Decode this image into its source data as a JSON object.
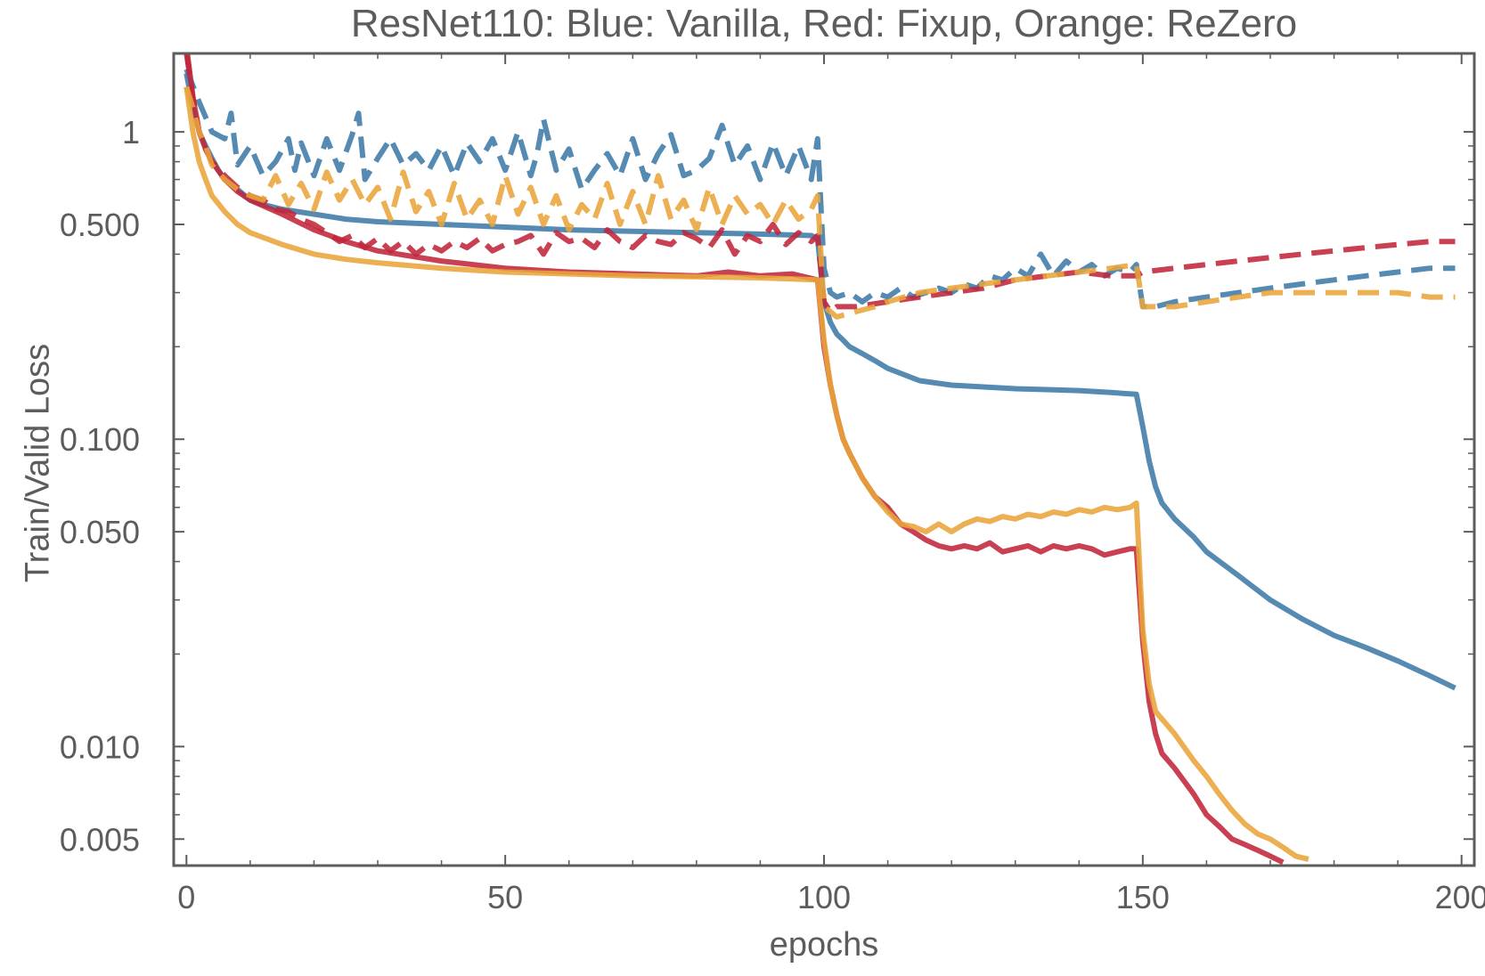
{
  "chart_data": {
    "type": "line",
    "title": "ResNet110:  Blue: Vanilla, Red: Fixup, Orange: ReZero",
    "xlabel": "epochs",
    "ylabel": "Train/Valid Loss",
    "xlim": [
      -2,
      202
    ],
    "ylim": [
      0.0041,
      1.8
    ],
    "y_scale": "log",
    "grid": false,
    "legend": "none",
    "x_ticks": [
      0,
      50,
      100,
      150,
      200
    ],
    "x_tick_labels": [
      "0",
      "50",
      "100",
      "150",
      "200"
    ],
    "y_ticks": [
      0.005,
      0.01,
      0.05,
      0.1,
      0.5,
      1
    ],
    "y_tick_labels": [
      "0.005",
      "0.010",
      "0.050",
      "0.100",
      "0.500",
      "1"
    ],
    "colors": {
      "blue": "#3d7aa8",
      "red": "#c0263a",
      "orange": "#e9a43a"
    },
    "series": [
      {
        "color": "#3d7aa8",
        "style": "dashed",
        "x": [
          0,
          2,
          4,
          6,
          7,
          8,
          10,
          12,
          14,
          16,
          17,
          18,
          20,
          22,
          24,
          26,
          27,
          28,
          30,
          32,
          34,
          36,
          38,
          40,
          42,
          44,
          46,
          48,
          50,
          52,
          54,
          55,
          56,
          58,
          60,
          62,
          64,
          66,
          68,
          70,
          72,
          74,
          76,
          78,
          80,
          82,
          84,
          86,
          88,
          90,
          92,
          94,
          96,
          98,
          99,
          100,
          101,
          102,
          104,
          106,
          108,
          110,
          112,
          114,
          116,
          118,
          120,
          122,
          124,
          126,
          128,
          130,
          132,
          134,
          136,
          138,
          140,
          142,
          144,
          146,
          148,
          149,
          150,
          151,
          152,
          155,
          160,
          165,
          170,
          175,
          180,
          185,
          190,
          195,
          199
        ],
        "y": [
          1.6,
          1.25,
          1.0,
          0.95,
          1.15,
          0.78,
          0.9,
          0.72,
          0.8,
          0.95,
          0.75,
          0.92,
          0.72,
          0.95,
          0.75,
          0.98,
          1.15,
          0.7,
          0.82,
          0.95,
          0.78,
          0.85,
          0.75,
          0.9,
          0.72,
          0.92,
          0.8,
          0.95,
          0.75,
          1.0,
          0.72,
          0.85,
          1.1,
          0.75,
          0.88,
          0.65,
          0.75,
          0.85,
          0.72,
          0.95,
          0.7,
          0.85,
          0.98,
          0.72,
          0.75,
          0.82,
          1.05,
          0.78,
          0.9,
          0.7,
          0.92,
          0.72,
          0.9,
          0.7,
          0.95,
          0.36,
          0.3,
          0.29,
          0.3,
          0.28,
          0.3,
          0.29,
          0.31,
          0.29,
          0.3,
          0.31,
          0.3,
          0.32,
          0.31,
          0.34,
          0.33,
          0.36,
          0.34,
          0.4,
          0.34,
          0.38,
          0.35,
          0.37,
          0.34,
          0.36,
          0.35,
          0.37,
          0.27,
          0.27,
          0.27,
          0.28,
          0.29,
          0.3,
          0.31,
          0.32,
          0.33,
          0.34,
          0.35,
          0.36,
          0.36
        ]
      },
      {
        "color": "#3d7aa8",
        "style": "solid",
        "x": [
          0,
          1,
          2,
          3,
          4,
          5,
          6,
          8,
          10,
          12,
          15,
          20,
          25,
          30,
          40,
          50,
          60,
          70,
          80,
          90,
          98,
          99,
          100,
          101,
          102,
          103,
          104,
          106,
          108,
          110,
          115,
          120,
          125,
          130,
          135,
          140,
          145,
          149,
          150,
          151,
          152,
          153,
          155,
          158,
          160,
          165,
          170,
          175,
          180,
          185,
          190,
          195,
          199
        ],
        "y": [
          1.55,
          1.2,
          1.0,
          0.9,
          0.82,
          0.75,
          0.7,
          0.65,
          0.6,
          0.58,
          0.56,
          0.54,
          0.52,
          0.51,
          0.5,
          0.49,
          0.48,
          0.475,
          0.47,
          0.465,
          0.46,
          0.45,
          0.28,
          0.24,
          0.22,
          0.21,
          0.2,
          0.19,
          0.18,
          0.17,
          0.155,
          0.15,
          0.148,
          0.146,
          0.145,
          0.144,
          0.142,
          0.14,
          0.11,
          0.085,
          0.07,
          0.062,
          0.055,
          0.048,
          0.043,
          0.036,
          0.03,
          0.026,
          0.023,
          0.021,
          0.019,
          0.017,
          0.0155
        ]
      },
      {
        "color": "#c0263a",
        "style": "dashed",
        "x": [
          0,
          1,
          2,
          3,
          4,
          6,
          8,
          10,
          12,
          14,
          16,
          18,
          20,
          22,
          24,
          26,
          28,
          30,
          32,
          34,
          36,
          38,
          40,
          42,
          44,
          46,
          48,
          50,
          52,
          54,
          56,
          58,
          60,
          62,
          64,
          66,
          68,
          70,
          72,
          74,
          76,
          78,
          80,
          82,
          84,
          86,
          88,
          90,
          92,
          94,
          96,
          98,
          99,
          100,
          101,
          102,
          105,
          110,
          115,
          120,
          125,
          130,
          135,
          140,
          145,
          149,
          150,
          155,
          160,
          165,
          170,
          175,
          180,
          185,
          190,
          195,
          199
        ],
        "y": [
          1.8,
          1.3,
          1.0,
          0.88,
          0.8,
          0.72,
          0.66,
          0.62,
          0.6,
          0.56,
          0.55,
          0.52,
          0.5,
          0.47,
          0.44,
          0.46,
          0.42,
          0.45,
          0.41,
          0.44,
          0.4,
          0.43,
          0.41,
          0.44,
          0.42,
          0.45,
          0.41,
          0.43,
          0.44,
          0.46,
          0.4,
          0.47,
          0.44,
          0.45,
          0.42,
          0.48,
          0.44,
          0.42,
          0.46,
          0.44,
          0.43,
          0.47,
          0.45,
          0.42,
          0.48,
          0.4,
          0.46,
          0.44,
          0.5,
          0.43,
          0.47,
          0.44,
          0.46,
          0.28,
          0.26,
          0.27,
          0.27,
          0.28,
          0.29,
          0.3,
          0.31,
          0.33,
          0.34,
          0.35,
          0.34,
          0.34,
          0.35,
          0.36,
          0.37,
          0.38,
          0.39,
          0.4,
          0.41,
          0.42,
          0.43,
          0.44,
          0.44
        ]
      },
      {
        "color": "#c0263a",
        "style": "solid",
        "x": [
          0,
          1,
          2,
          3,
          4,
          6,
          8,
          10,
          15,
          20,
          25,
          30,
          40,
          50,
          60,
          70,
          80,
          85,
          90,
          95,
          99,
          100,
          101,
          102,
          103,
          104,
          106,
          108,
          110,
          112,
          114,
          116,
          118,
          120,
          122,
          124,
          126,
          128,
          130,
          132,
          134,
          136,
          138,
          140,
          142,
          144,
          146,
          148,
          149,
          150,
          151,
          152,
          153,
          155,
          158,
          160,
          162,
          164,
          166,
          168,
          170,
          172
        ],
        "y": [
          1.9,
          1.3,
          1.0,
          0.88,
          0.8,
          0.7,
          0.64,
          0.6,
          0.54,
          0.48,
          0.44,
          0.41,
          0.38,
          0.36,
          0.35,
          0.345,
          0.34,
          0.35,
          0.34,
          0.345,
          0.33,
          0.2,
          0.15,
          0.12,
          0.1,
          0.09,
          0.075,
          0.065,
          0.06,
          0.053,
          0.05,
          0.047,
          0.045,
          0.044,
          0.045,
          0.044,
          0.046,
          0.043,
          0.044,
          0.045,
          0.043,
          0.045,
          0.044,
          0.045,
          0.044,
          0.042,
          0.043,
          0.044,
          0.044,
          0.022,
          0.014,
          0.011,
          0.0095,
          0.0085,
          0.007,
          0.006,
          0.0055,
          0.005,
          0.0048,
          0.0046,
          0.0044,
          0.0042
        ]
      },
      {
        "color": "#e9a43a",
        "style": "dashed",
        "x": [
          0,
          1,
          2,
          3,
          4,
          6,
          8,
          10,
          12,
          14,
          16,
          18,
          20,
          22,
          24,
          26,
          28,
          30,
          32,
          34,
          36,
          38,
          40,
          42,
          44,
          46,
          48,
          50,
          52,
          54,
          56,
          58,
          60,
          62,
          64,
          66,
          68,
          70,
          72,
          74,
          76,
          78,
          80,
          82,
          84,
          86,
          88,
          90,
          92,
          94,
          96,
          98,
          99,
          100,
          101,
          102,
          105,
          108,
          110,
          115,
          120,
          125,
          130,
          135,
          140,
          145,
          149,
          150,
          155,
          160,
          165,
          170,
          175,
          180,
          185,
          190,
          195,
          199
        ],
        "y": [
          1.4,
          1.2,
          1.0,
          0.9,
          0.78,
          0.7,
          0.65,
          0.62,
          0.6,
          0.72,
          0.58,
          0.68,
          0.56,
          0.74,
          0.6,
          0.7,
          0.58,
          0.66,
          0.52,
          0.74,
          0.55,
          0.64,
          0.5,
          0.68,
          0.52,
          0.6,
          0.5,
          0.72,
          0.54,
          0.66,
          0.5,
          0.62,
          0.48,
          0.58,
          0.52,
          0.68,
          0.5,
          0.64,
          0.5,
          0.72,
          0.52,
          0.6,
          0.48,
          0.66,
          0.5,
          0.62,
          0.54,
          0.58,
          0.5,
          0.6,
          0.52,
          0.56,
          0.62,
          0.27,
          0.26,
          0.25,
          0.26,
          0.27,
          0.28,
          0.3,
          0.31,
          0.32,
          0.33,
          0.34,
          0.35,
          0.36,
          0.37,
          0.27,
          0.27,
          0.28,
          0.29,
          0.3,
          0.3,
          0.3,
          0.3,
          0.3,
          0.29,
          0.29
        ]
      },
      {
        "color": "#e9a43a",
        "style": "solid",
        "x": [
          0,
          1,
          2,
          3,
          4,
          6,
          8,
          10,
          15,
          20,
          25,
          30,
          40,
          50,
          60,
          70,
          80,
          90,
          99,
          100,
          101,
          102,
          103,
          104,
          106,
          108,
          110,
          112,
          114,
          116,
          118,
          120,
          122,
          124,
          126,
          128,
          130,
          132,
          134,
          136,
          138,
          140,
          142,
          144,
          146,
          148,
          149,
          150,
          151,
          152,
          155,
          158,
          160,
          162,
          164,
          166,
          168,
          170,
          172,
          174,
          176
        ],
        "y": [
          1.4,
          1.0,
          0.8,
          0.7,
          0.62,
          0.55,
          0.5,
          0.47,
          0.43,
          0.4,
          0.385,
          0.375,
          0.36,
          0.35,
          0.345,
          0.34,
          0.338,
          0.335,
          0.33,
          0.21,
          0.15,
          0.12,
          0.1,
          0.09,
          0.075,
          0.065,
          0.058,
          0.053,
          0.052,
          0.05,
          0.053,
          0.05,
          0.053,
          0.055,
          0.054,
          0.056,
          0.055,
          0.057,
          0.056,
          0.058,
          0.057,
          0.059,
          0.058,
          0.06,
          0.059,
          0.06,
          0.062,
          0.024,
          0.016,
          0.013,
          0.011,
          0.009,
          0.008,
          0.007,
          0.0062,
          0.0056,
          0.0052,
          0.005,
          0.0047,
          0.0044,
          0.0043
        ]
      }
    ]
  }
}
